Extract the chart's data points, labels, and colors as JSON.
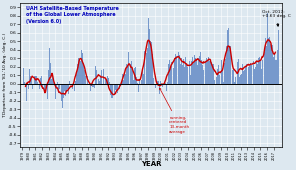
{
  "title_line1": "UAH Satellite-Based Temperature",
  "title_line2": "of the Global Lower Atmosphere",
  "title_line3": "(Version 6.0)",
  "xlabel": "YEAR",
  "ylabel": "T Departure from '81-'10 Avg. (deg. C.)",
  "ylim": [
    -0.75,
    0.95
  ],
  "annotation_text": "Oct. 2017:\n+0.63 deg. C",
  "running_avg_label": "running,\ncentered\n13-month\naverage",
  "bar_color": "#7799cc",
  "line_color": "#cc0000",
  "annotation_color": "#000000",
  "running_label_color": "#cc0000",
  "title_color": "#0000bb",
  "background_color": "#dde8f0",
  "plot_bg_color": "#dde8f0",
  "grid_color": "#ffffff",
  "zero_line_color": "#000000",
  "start_year": 1979,
  "end_year": 2017,
  "last_value": 0.63
}
